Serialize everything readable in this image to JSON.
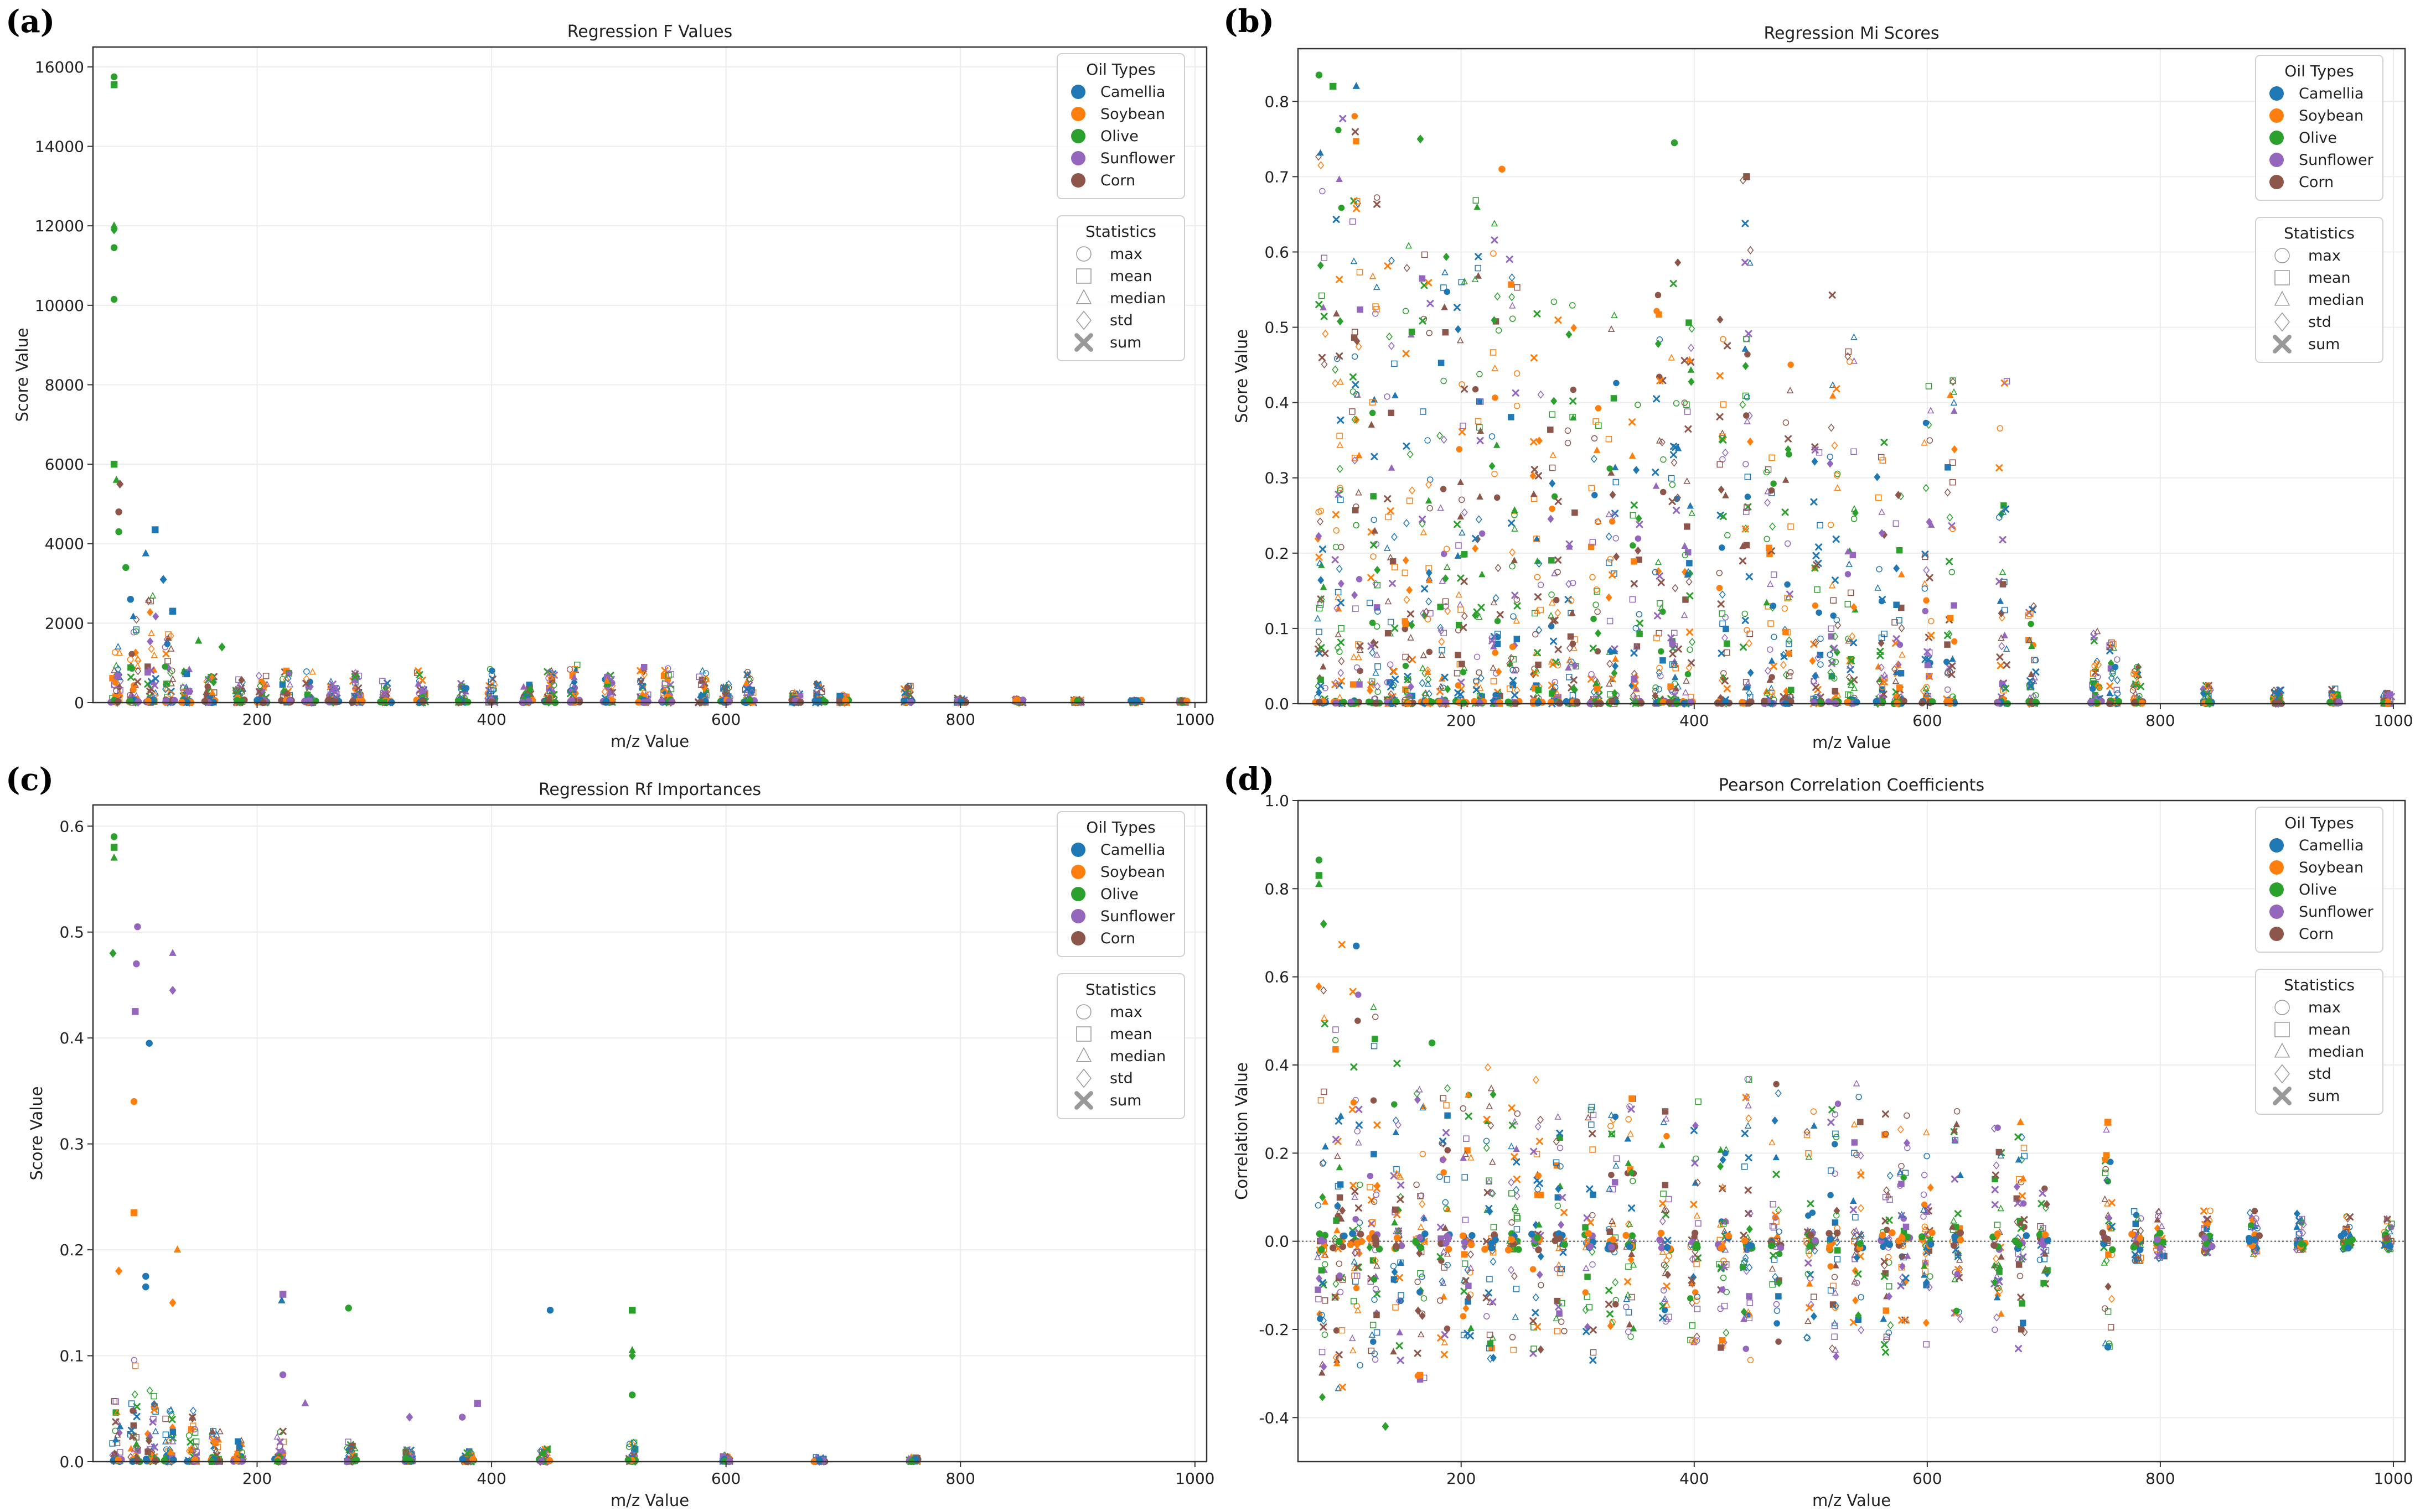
{
  "figure": {
    "legend_oil_title": "Oil Types",
    "legend_stat_title": "Statistics",
    "oil_types": [
      {
        "name": "Camellia",
        "color": "#1f77b4"
      },
      {
        "name": "Soybean",
        "color": "#ff7f0e"
      },
      {
        "name": "Olive",
        "color": "#2ca02c"
      },
      {
        "name": "Sunflower",
        "color": "#9467bd"
      },
      {
        "name": "Corn",
        "color": "#8c564b"
      }
    ],
    "statistics": [
      {
        "name": "max",
        "marker": "circle"
      },
      {
        "name": "mean",
        "marker": "square"
      },
      {
        "name": "median",
        "marker": "triangle"
      },
      {
        "name": "std",
        "marker": "diamond"
      },
      {
        "name": "sum",
        "marker": "x"
      }
    ]
  },
  "chart_data": [
    {
      "panel": "(a)",
      "type": "scatter",
      "title": "Regression F Values",
      "xlabel": "m/z Value",
      "ylabel": "Score Value",
      "xlim": [
        60,
        1010
      ],
      "ylim": [
        0,
        16500
      ],
      "xticks": [
        200,
        400,
        600,
        800,
        1000
      ],
      "yticks": [
        0,
        2000,
        4000,
        6000,
        8000,
        10000,
        12000,
        14000,
        16000
      ],
      "grid": true,
      "legend_position": "top-right",
      "notable_points": [
        {
          "x": 78,
          "y": 15750,
          "series": "Olive"
        },
        {
          "x": 78,
          "y": 15550,
          "series": "Olive"
        },
        {
          "x": 78,
          "y": 12000,
          "series": "Olive"
        },
        {
          "x": 78,
          "y": 11900,
          "series": "Olive"
        },
        {
          "x": 78,
          "y": 11450,
          "series": "Olive"
        },
        {
          "x": 78,
          "y": 10150,
          "series": "Olive"
        },
        {
          "x": 78,
          "y": 6000,
          "series": "Olive"
        },
        {
          "x": 80,
          "y": 5600,
          "series": "Olive"
        },
        {
          "x": 83,
          "y": 5500,
          "series": "Corn"
        },
        {
          "x": 82,
          "y": 4800,
          "series": "Corn"
        },
        {
          "x": 82,
          "y": 4300,
          "series": "Olive"
        },
        {
          "x": 113,
          "y": 4350,
          "series": "Camellia"
        },
        {
          "x": 105,
          "y": 3750,
          "series": "Camellia"
        },
        {
          "x": 120,
          "y": 3100,
          "series": "Camellia"
        },
        {
          "x": 88,
          "y": 3400,
          "series": "Olive"
        },
        {
          "x": 92,
          "y": 2600,
          "series": "Camellia"
        },
        {
          "x": 128,
          "y": 2300,
          "series": "Camellia"
        },
        {
          "x": 150,
          "y": 1550,
          "series": "Olive"
        },
        {
          "x": 170,
          "y": 1400,
          "series": "Olive"
        }
      ],
      "peak_clusters": [
        {
          "x": 80,
          "y": 1500
        },
        {
          "x": 95,
          "y": 2200
        },
        {
          "x": 110,
          "y": 2800
        },
        {
          "x": 125,
          "y": 1800
        },
        {
          "x": 140,
          "y": 900
        },
        {
          "x": 160,
          "y": 700
        },
        {
          "x": 185,
          "y": 600
        },
        {
          "x": 205,
          "y": 700
        },
        {
          "x": 225,
          "y": 900
        },
        {
          "x": 245,
          "y": 800
        },
        {
          "x": 265,
          "y": 600
        },
        {
          "x": 285,
          "y": 750
        },
        {
          "x": 310,
          "y": 550
        },
        {
          "x": 340,
          "y": 800
        },
        {
          "x": 375,
          "y": 500
        },
        {
          "x": 400,
          "y": 900
        },
        {
          "x": 430,
          "y": 450
        },
        {
          "x": 450,
          "y": 850
        },
        {
          "x": 470,
          "y": 1000
        },
        {
          "x": 500,
          "y": 700
        },
        {
          "x": 530,
          "y": 900
        },
        {
          "x": 550,
          "y": 900
        },
        {
          "x": 580,
          "y": 800
        },
        {
          "x": 600,
          "y": 500
        },
        {
          "x": 620,
          "y": 800
        },
        {
          "x": 660,
          "y": 300
        },
        {
          "x": 680,
          "y": 500
        },
        {
          "x": 700,
          "y": 200
        },
        {
          "x": 755,
          "y": 450
        },
        {
          "x": 800,
          "y": 120
        },
        {
          "x": 850,
          "y": 100
        },
        {
          "x": 900,
          "y": 80
        },
        {
          "x": 950,
          "y": 70
        },
        {
          "x": 990,
          "y": 60
        }
      ]
    },
    {
      "panel": "(b)",
      "type": "scatter",
      "title": "Regression Mi Scores",
      "xlabel": "m/z Value",
      "ylabel": "Score Value",
      "xlim": [
        60,
        1010
      ],
      "ylim": [
        0,
        0.87
      ],
      "xticks": [
        200,
        400,
        600,
        800,
        1000
      ],
      "yticks": [
        0.0,
        0.1,
        0.2,
        0.3,
        0.4,
        0.5,
        0.6,
        0.7,
        0.8
      ],
      "grid": true,
      "legend_position": "top-right",
      "notable_points": [
        {
          "x": 78,
          "y": 0.835,
          "series": "Olive"
        },
        {
          "x": 90,
          "y": 0.82,
          "series": "Olive"
        },
        {
          "x": 110,
          "y": 0.82,
          "series": "Camellia"
        },
        {
          "x": 165,
          "y": 0.75,
          "series": "Olive"
        },
        {
          "x": 235,
          "y": 0.71,
          "series": "Soybean"
        },
        {
          "x": 383,
          "y": 0.745,
          "series": "Olive"
        },
        {
          "x": 445,
          "y": 0.7,
          "series": "Corn"
        }
      ],
      "peak_clusters": [
        {
          "x": 80,
          "y": 0.75
        },
        {
          "x": 95,
          "y": 0.78
        },
        {
          "x": 110,
          "y": 0.8
        },
        {
          "x": 125,
          "y": 0.7
        },
        {
          "x": 140,
          "y": 0.6
        },
        {
          "x": 155,
          "y": 0.63
        },
        {
          "x": 170,
          "y": 0.6
        },
        {
          "x": 185,
          "y": 0.6
        },
        {
          "x": 200,
          "y": 0.58
        },
        {
          "x": 215,
          "y": 0.67
        },
        {
          "x": 230,
          "y": 0.65
        },
        {
          "x": 245,
          "y": 0.6
        },
        {
          "x": 265,
          "y": 0.52
        },
        {
          "x": 280,
          "y": 0.55
        },
        {
          "x": 295,
          "y": 0.56
        },
        {
          "x": 315,
          "y": 0.5
        },
        {
          "x": 330,
          "y": 0.52
        },
        {
          "x": 350,
          "y": 0.42
        },
        {
          "x": 370,
          "y": 0.58
        },
        {
          "x": 383,
          "y": 0.6
        },
        {
          "x": 395,
          "y": 0.55
        },
        {
          "x": 425,
          "y": 0.52
        },
        {
          "x": 445,
          "y": 0.7
        },
        {
          "x": 465,
          "y": 0.35
        },
        {
          "x": 480,
          "y": 0.5
        },
        {
          "x": 505,
          "y": 0.35
        },
        {
          "x": 520,
          "y": 0.56
        },
        {
          "x": 535,
          "y": 0.5
        },
        {
          "x": 560,
          "y": 0.35
        },
        {
          "x": 575,
          "y": 0.3
        },
        {
          "x": 600,
          "y": 0.45
        },
        {
          "x": 620,
          "y": 0.45
        },
        {
          "x": 665,
          "y": 0.44
        },
        {
          "x": 690,
          "y": 0.13
        },
        {
          "x": 745,
          "y": 0.1
        },
        {
          "x": 760,
          "y": 0.09
        },
        {
          "x": 780,
          "y": 0.06
        },
        {
          "x": 840,
          "y": 0.025
        },
        {
          "x": 900,
          "y": 0.02
        },
        {
          "x": 950,
          "y": 0.02
        },
        {
          "x": 995,
          "y": 0.015
        }
      ]
    },
    {
      "panel": "(c)",
      "type": "scatter",
      "title": "Regression Rf Importances",
      "xlabel": "m/z Value",
      "ylabel": "Score Value",
      "xlim": [
        60,
        1010
      ],
      "ylim": [
        0,
        0.62
      ],
      "xticks": [
        200,
        400,
        600,
        800,
        1000
      ],
      "yticks": [
        0.0,
        0.1,
        0.2,
        0.3,
        0.4,
        0.5,
        0.6
      ],
      "grid": true,
      "legend_position": "top-right",
      "notable_points": [
        {
          "x": 78,
          "y": 0.59,
          "series": "Olive"
        },
        {
          "x": 78,
          "y": 0.58,
          "series": "Olive"
        },
        {
          "x": 78,
          "y": 0.57,
          "series": "Olive"
        },
        {
          "x": 77,
          "y": 0.48,
          "series": "Olive"
        },
        {
          "x": 98,
          "y": 0.505,
          "series": "Sunflower"
        },
        {
          "x": 97,
          "y": 0.47,
          "series": "Sunflower"
        },
        {
          "x": 96,
          "y": 0.425,
          "series": "Sunflower"
        },
        {
          "x": 128,
          "y": 0.48,
          "series": "Sunflower"
        },
        {
          "x": 128,
          "y": 0.445,
          "series": "Sunflower"
        },
        {
          "x": 108,
          "y": 0.395,
          "series": "Camellia"
        },
        {
          "x": 95,
          "y": 0.34,
          "series": "Soybean"
        },
        {
          "x": 95,
          "y": 0.235,
          "series": "Soybean"
        },
        {
          "x": 132,
          "y": 0.2,
          "series": "Soybean"
        },
        {
          "x": 82,
          "y": 0.18,
          "series": "Soybean"
        },
        {
          "x": 105,
          "y": 0.175,
          "series": "Camellia"
        },
        {
          "x": 105,
          "y": 0.165,
          "series": "Camellia"
        },
        {
          "x": 222,
          "y": 0.158,
          "series": "Sunflower"
        },
        {
          "x": 221,
          "y": 0.152,
          "series": "Camellia"
        },
        {
          "x": 128,
          "y": 0.15,
          "series": "Soybean"
        },
        {
          "x": 278,
          "y": 0.145,
          "series": "Olive"
        },
        {
          "x": 450,
          "y": 0.143,
          "series": "Camellia"
        },
        {
          "x": 520,
          "y": 0.143,
          "series": "Olive"
        },
        {
          "x": 520,
          "y": 0.105,
          "series": "Olive"
        },
        {
          "x": 520,
          "y": 0.1,
          "series": "Olive"
        },
        {
          "x": 520,
          "y": 0.063,
          "series": "Olive"
        },
        {
          "x": 222,
          "y": 0.082,
          "series": "Sunflower"
        },
        {
          "x": 388,
          "y": 0.055,
          "series": "Sunflower"
        },
        {
          "x": 241,
          "y": 0.055,
          "series": "Sunflower"
        },
        {
          "x": 330,
          "y": 0.042,
          "series": "Sunflower"
        },
        {
          "x": 375,
          "y": 0.042,
          "series": "Sunflower"
        }
      ],
      "peak_clusters": [
        {
          "x": 80,
          "y": 0.06
        },
        {
          "x": 95,
          "y": 0.1
        },
        {
          "x": 110,
          "y": 0.07
        },
        {
          "x": 125,
          "y": 0.05
        },
        {
          "x": 145,
          "y": 0.05
        },
        {
          "x": 165,
          "y": 0.03
        },
        {
          "x": 185,
          "y": 0.02
        },
        {
          "x": 220,
          "y": 0.03
        },
        {
          "x": 280,
          "y": 0.02
        },
        {
          "x": 330,
          "y": 0.012
        },
        {
          "x": 380,
          "y": 0.01
        },
        {
          "x": 445,
          "y": 0.012
        },
        {
          "x": 520,
          "y": 0.02
        },
        {
          "x": 600,
          "y": 0.006
        },
        {
          "x": 680,
          "y": 0.005
        },
        {
          "x": 760,
          "y": 0.004
        }
      ]
    },
    {
      "panel": "(d)",
      "type": "scatter",
      "title": "Pearson Correlation Coefficients",
      "xlabel": "m/z Value",
      "ylabel": "Correlation Value",
      "xlim": [
        60,
        1010
      ],
      "ylim": [
        -0.5,
        1.0
      ],
      "xticks": [
        200,
        400,
        600,
        800,
        1000
      ],
      "yticks": [
        -0.4,
        -0.2,
        0.0,
        0.2,
        0.4,
        0.6,
        0.8,
        1.0
      ],
      "grid": true,
      "reference_line": {
        "y": 0.0,
        "style": "dotted"
      },
      "legend_position": "top-right",
      "notable_points": [
        {
          "x": 78,
          "y": 0.865,
          "series": "Olive"
        },
        {
          "x": 78,
          "y": 0.83,
          "series": "Olive"
        },
        {
          "x": 78,
          "y": 0.81,
          "series": "Olive"
        },
        {
          "x": 82,
          "y": 0.72,
          "series": "Olive"
        },
        {
          "x": 110,
          "y": 0.67,
          "series": "Camellia"
        },
        {
          "x": 175,
          "y": 0.45,
          "series": "Olive"
        },
        {
          "x": 755,
          "y": 0.27,
          "series": "Soybean"
        },
        {
          "x": 680,
          "y": 0.27,
          "series": "Soybean"
        },
        {
          "x": 135,
          "y": -0.42,
          "series": "Olive"
        },
        {
          "x": 755,
          "y": -0.24,
          "series": "Camellia"
        }
      ],
      "peak_clusters": [
        {
          "x": 80,
          "y": 0.6,
          "ymin": -0.38
        },
        {
          "x": 95,
          "y": 0.7,
          "ymin": -0.35
        },
        {
          "x": 110,
          "y": 0.62,
          "ymin": -0.33
        },
        {
          "x": 125,
          "y": 0.55,
          "ymin": -0.35
        },
        {
          "x": 145,
          "y": 0.45,
          "ymin": -0.3
        },
        {
          "x": 165,
          "y": 0.4,
          "ymin": -0.33
        },
        {
          "x": 185,
          "y": 0.35,
          "ymin": -0.32
        },
        {
          "x": 205,
          "y": 0.38,
          "ymin": -0.3
        },
        {
          "x": 225,
          "y": 0.4,
          "ymin": -0.32
        },
        {
          "x": 245,
          "y": 0.35,
          "ymin": -0.3
        },
        {
          "x": 265,
          "y": 0.37,
          "ymin": -0.27
        },
        {
          "x": 285,
          "y": 0.33,
          "ymin": -0.24
        },
        {
          "x": 310,
          "y": 0.36,
          "ymin": -0.27
        },
        {
          "x": 330,
          "y": 0.35,
          "ymin": -0.2
        },
        {
          "x": 345,
          "y": 0.34,
          "ymin": -0.22
        },
        {
          "x": 375,
          "y": 0.35,
          "ymin": -0.2
        },
        {
          "x": 400,
          "y": 0.36,
          "ymin": -0.23
        },
        {
          "x": 425,
          "y": 0.32,
          "ymin": -0.26
        },
        {
          "x": 445,
          "y": 0.38,
          "ymin": -0.27
        },
        {
          "x": 470,
          "y": 0.4,
          "ymin": -0.23
        },
        {
          "x": 500,
          "y": 0.32,
          "ymin": -0.25
        },
        {
          "x": 520,
          "y": 0.34,
          "ymin": -0.27
        },
        {
          "x": 540,
          "y": 0.36,
          "ymin": -0.22
        },
        {
          "x": 565,
          "y": 0.3,
          "ymin": -0.26
        },
        {
          "x": 580,
          "y": 0.3,
          "ymin": -0.22
        },
        {
          "x": 600,
          "y": 0.28,
          "ymin": -0.25
        },
        {
          "x": 625,
          "y": 0.32,
          "ymin": -0.24
        },
        {
          "x": 660,
          "y": 0.26,
          "ymin": -0.22
        },
        {
          "x": 680,
          "y": 0.27,
          "ymin": -0.26
        },
        {
          "x": 700,
          "y": 0.12,
          "ymin": -0.1
        },
        {
          "x": 755,
          "y": 0.28,
          "ymin": -0.24
        },
        {
          "x": 780,
          "y": 0.07,
          "ymin": -0.05
        },
        {
          "x": 800,
          "y": 0.07,
          "ymin": -0.04
        },
        {
          "x": 840,
          "y": 0.07,
          "ymin": -0.03
        },
        {
          "x": 880,
          "y": 0.07,
          "ymin": -0.03
        },
        {
          "x": 920,
          "y": 0.07,
          "ymin": -0.02
        },
        {
          "x": 960,
          "y": 0.07,
          "ymin": -0.02
        },
        {
          "x": 995,
          "y": 0.07,
          "ymin": -0.02
        }
      ]
    }
  ]
}
